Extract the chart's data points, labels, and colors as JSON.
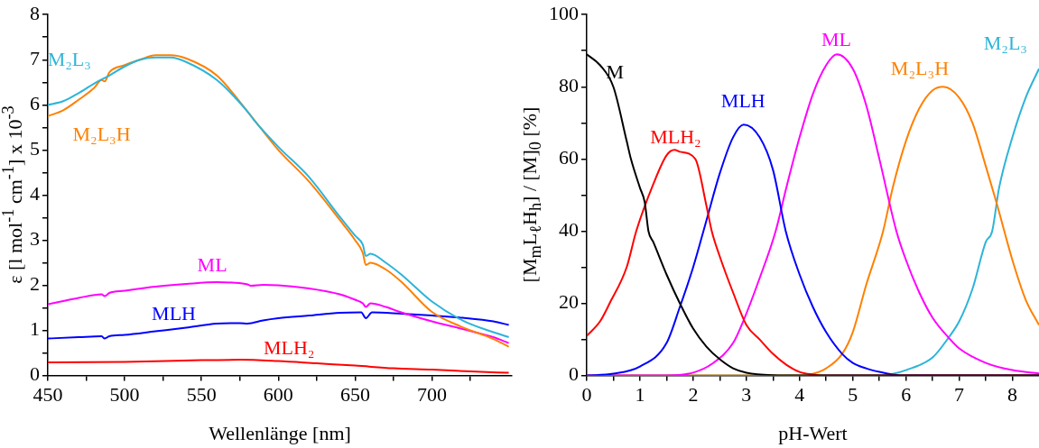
{
  "chart_data": [
    {
      "type": "line",
      "xlabel": "Wellenlänge [nm]",
      "ylabel": "ε [l mol$^{-1}$ cm$^{-1}$] x 10$^{-3}$",
      "xlim": [
        450,
        752
      ],
      "ylim": [
        0,
        8
      ],
      "xticks": [
        450,
        {
          "value": 475,
          "label": null
        },
        500,
        {
          "value": 525,
          "label": null
        },
        550,
        {
          "value": 575,
          "label": null
        },
        600,
        {
          "value": 625,
          "label": null
        },
        650,
        {
          "value": 675,
          "label": null
        },
        700,
        {
          "value": 725,
          "label": null
        }
      ],
      "yticks": [
        0,
        {
          "value": 0.5,
          "label": null
        },
        1,
        {
          "value": 1.5,
          "label": null
        },
        2,
        {
          "value": 2.5,
          "label": null
        },
        3,
        {
          "value": 3.5,
          "label": null
        },
        4,
        {
          "value": 4.5,
          "label": null
        },
        5,
        {
          "value": 5.5,
          "label": null
        },
        6,
        {
          "value": 6.5,
          "label": null
        },
        7,
        {
          "value": 7.5,
          "label": null
        },
        8
      ],
      "grid": false,
      "legend": false,
      "marker": "none",
      "line_style": "solid",
      "series": [
        {
          "name": "M₂L₃",
          "color": "#2db4d8",
          "x": [
            450,
            460,
            470,
            480,
            490,
            500,
            510,
            520,
            530,
            540,
            560,
            580,
            584,
            600,
            620,
            640,
            650,
            655,
            657,
            660,
            670,
            680,
            700,
            720,
            740,
            750
          ],
          "values": [
            6.0,
            6.08,
            6.26,
            6.47,
            6.65,
            6.85,
            7.0,
            7.05,
            7.05,
            6.95,
            6.55,
            5.85,
            5.67,
            5.07,
            4.4,
            3.52,
            3.1,
            2.9,
            2.65,
            2.7,
            2.5,
            2.24,
            1.64,
            1.22,
            0.96,
            0.85
          ]
        },
        {
          "name": "M₂L₃H",
          "color": "#ff8000",
          "x": [
            450,
            460,
            470,
            480,
            485,
            487,
            490,
            500,
            510,
            520,
            530,
            540,
            560,
            580,
            600,
            620,
            640,
            650,
            655,
            657,
            660,
            670,
            680,
            700,
            720,
            740,
            750
          ],
          "values": [
            5.75,
            5.88,
            6.11,
            6.37,
            6.55,
            6.52,
            6.72,
            6.88,
            7.0,
            7.1,
            7.1,
            7.03,
            6.65,
            5.85,
            5.0,
            4.3,
            3.45,
            3.0,
            2.72,
            2.45,
            2.5,
            2.35,
            2.08,
            1.41,
            1.07,
            0.81,
            0.64
          ]
        },
        {
          "name": "ML",
          "color": "#ff00ff",
          "x": [
            450,
            460,
            470,
            485,
            487,
            490,
            500,
            520,
            540,
            560,
            570,
            580,
            582,
            590,
            600,
            620,
            640,
            650,
            655,
            657,
            660,
            670,
            680,
            700,
            720,
            740,
            750
          ],
          "values": [
            1.58,
            1.65,
            1.72,
            1.8,
            1.76,
            1.83,
            1.88,
            1.97,
            2.03,
            2.07,
            2.06,
            2.02,
            1.99,
            2.01,
            2.0,
            1.93,
            1.8,
            1.68,
            1.6,
            1.52,
            1.6,
            1.52,
            1.4,
            1.2,
            1.03,
            0.85,
            0.72
          ]
        },
        {
          "name": "MLH",
          "color": "#0000ff",
          "x": [
            450,
            470,
            485,
            487,
            490,
            500,
            520,
            540,
            560,
            575,
            580,
            590,
            600,
            620,
            640,
            654,
            657,
            661,
            680,
            700,
            720,
            740,
            750
          ],
          "values": [
            0.82,
            0.85,
            0.87,
            0.82,
            0.87,
            0.9,
            0.98,
            1.06,
            1.15,
            1.16,
            1.15,
            1.22,
            1.27,
            1.33,
            1.39,
            1.4,
            1.27,
            1.4,
            1.37,
            1.33,
            1.28,
            1.2,
            1.12
          ]
        },
        {
          "name": "MLH₂",
          "color": "#ff0000",
          "x": [
            450,
            500,
            550,
            575,
            600,
            625,
            650,
            675,
            700,
            725,
            750
          ],
          "values": [
            0.29,
            0.3,
            0.34,
            0.35,
            0.32,
            0.27,
            0.22,
            0.16,
            0.13,
            0.09,
            0.06
          ]
        }
      ]
    },
    {
      "type": "line",
      "xlabel": "pH-Wert",
      "ylabel": "[M$_{m}$L$_{ℓ}$H$_{h}$] / [M]$_{0}$ [%]",
      "xlim": [
        0,
        8.5
      ],
      "ylim": [
        0,
        100
      ],
      "xticks": [
        0,
        {
          "value": 0.5,
          "label": null
        },
        1,
        {
          "value": 1.5,
          "label": null
        },
        2,
        {
          "value": 2.5,
          "label": null
        },
        3,
        {
          "value": 3.5,
          "label": null
        },
        4,
        {
          "value": 4.5,
          "label": null
        },
        5,
        {
          "value": 5.5,
          "label": null
        },
        6,
        {
          "value": 6.5,
          "label": null
        },
        7,
        {
          "value": 7.5,
          "label": null
        },
        8
      ],
      "yticks": [
        0,
        {
          "value": 10,
          "label": null
        },
        20,
        {
          "value": 30,
          "label": null
        },
        40,
        {
          "value": 50,
          "label": null
        },
        60,
        {
          "value": 70,
          "label": null
        },
        80,
        {
          "value": 90,
          "label": null
        },
        100
      ],
      "grid": false,
      "legend": false,
      "marker": "none",
      "line_style": "solid",
      "series": [
        {
          "name": "M",
          "color": "#000000",
          "x": [
            0,
            0.25,
            0.5,
            0.75,
            0.83,
            1.0,
            1.09,
            1.16,
            1.25,
            1.5,
            1.75,
            2,
            2.25,
            2.5,
            2.75,
            3,
            3.5,
            4,
            8.5
          ],
          "values": [
            89,
            86,
            80,
            65,
            60,
            52,
            48,
            40,
            37,
            28,
            20,
            13,
            8,
            4.5,
            2,
            0.8,
            0.1,
            0,
            0
          ]
        },
        {
          "name": "MLH₂",
          "color": "#ff0000",
          "x": [
            0,
            0.25,
            0.43,
            0.75,
            0.93,
            1.25,
            1.5,
            1.65,
            1.75,
            2.04,
            2.25,
            2.35,
            2.5,
            2.75,
            3,
            3.25,
            3.5,
            3.75,
            4,
            4.25,
            4.5,
            8.5
          ],
          "values": [
            11,
            15,
            20,
            30,
            40,
            53,
            61,
            62.5,
            62,
            60,
            47,
            40,
            33,
            23,
            14,
            10,
            6,
            3,
            1,
            0.3,
            0,
            0
          ]
        },
        {
          "name": "MLH",
          "color": "#0000ff",
          "x": [
            0,
            0.5,
            1,
            1.5,
            1.75,
            2,
            2.25,
            2.5,
            2.75,
            2.95,
            3.25,
            3.5,
            3.74,
            4,
            4.25,
            4.5,
            4.8,
            5,
            5.25,
            5.5,
            5.75,
            6,
            8.5
          ],
          "values": [
            0,
            0.5,
            2.5,
            9,
            19,
            30,
            43,
            56,
            66,
            69.5,
            66,
            57,
            40,
            28,
            19,
            12,
            6,
            3.5,
            2,
            1,
            0.3,
            0,
            0
          ]
        },
        {
          "name": "ML",
          "color": "#ff00ff",
          "x": [
            0,
            1.5,
            2,
            2.35,
            2.75,
            2.94,
            3.25,
            3.55,
            3.75,
            4,
            4.25,
            4.5,
            4.7,
            5,
            5.25,
            5.5,
            5.82,
            6,
            6.25,
            6.5,
            6.8,
            7,
            7.5,
            8,
            8.5
          ],
          "values": [
            0,
            0,
            0.8,
            3.2,
            9,
            15,
            27,
            40,
            52,
            66,
            78,
            86,
            89,
            85,
            75,
            60,
            40,
            32,
            23,
            16,
            10.5,
            7.5,
            3.5,
            1.5,
            0.6
          ]
        },
        {
          "name": "M₂L₃H",
          "color": "#ff8000",
          "x": [
            0,
            4,
            4.2,
            4.5,
            4.8,
            5,
            5.25,
            5.57,
            5.75,
            6,
            6.25,
            6.5,
            6.7,
            7,
            7.25,
            7.5,
            7.7,
            8,
            8.25,
            8.5
          ],
          "values": [
            0,
            0,
            0.3,
            2,
            6,
            12,
            25,
            40,
            52,
            65,
            74,
            79,
            80,
            77,
            70,
            58,
            48,
            32,
            21,
            14
          ]
        },
        {
          "name": "M₂L₃",
          "color": "#2db4d8",
          "x": [
            0,
            5.5,
            5.7,
            6,
            6.5,
            6.8,
            7,
            7.25,
            7.5,
            7.62,
            7.75,
            8,
            8.25,
            8.5
          ],
          "values": [
            0,
            0,
            0.3,
            1.5,
            5,
            10.5,
            15,
            24,
            37,
            40,
            52,
            66,
            77,
            85
          ]
        }
      ]
    }
  ]
}
